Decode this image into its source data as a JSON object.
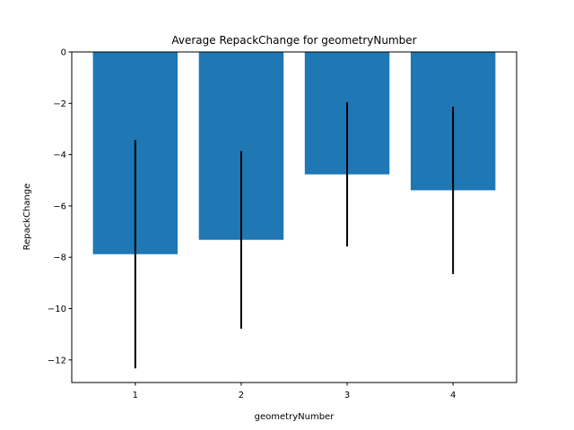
{
  "chart_data": {
    "type": "bar",
    "title": "Average RepackChange for geometryNumber",
    "xlabel": "geometryNumber",
    "ylabel": "RepackChange",
    "categories": [
      "1",
      "2",
      "3",
      "4"
    ],
    "values": [
      -7.88,
      -7.32,
      -4.77,
      -5.39
    ],
    "error_low": [
      -12.33,
      -10.78,
      -7.58,
      -8.65
    ],
    "error_high": [
      -3.43,
      -3.86,
      -1.96,
      -2.13
    ],
    "ylim": [
      -12.88,
      0
    ],
    "yticks": [
      0,
      -2,
      -4,
      -6,
      -8,
      -10,
      -12
    ],
    "ytick_labels": [
      "0",
      "−2",
      "−4",
      "−6",
      "−8",
      "−10",
      "−12"
    ],
    "grid": false,
    "colors": {
      "bar": "#1f77b4",
      "error": "#000000"
    }
  }
}
